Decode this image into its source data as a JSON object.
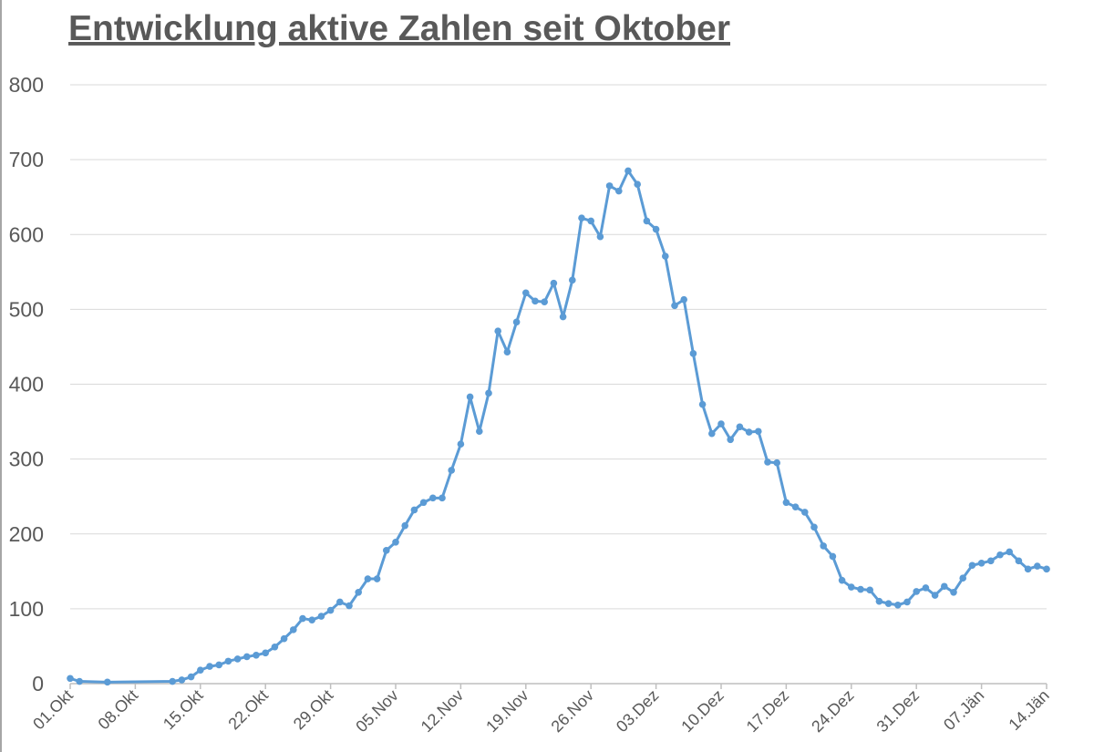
{
  "chart_data": {
    "type": "line",
    "title": "Entwicklung aktive Zahlen seit Oktober",
    "x": [
      0,
      1,
      4,
      11,
      12,
      13,
      14,
      15,
      16,
      17,
      18,
      19,
      20,
      21,
      22,
      23,
      24,
      25,
      26,
      27,
      28,
      29,
      30,
      31,
      32,
      33,
      34,
      35,
      36,
      37,
      38,
      39,
      40,
      41,
      42,
      43,
      44,
      45,
      46,
      47,
      48,
      49,
      50,
      51,
      52,
      53,
      54,
      55,
      56,
      57,
      58,
      59,
      60,
      61,
      62,
      63,
      64,
      65,
      66,
      67,
      68,
      69,
      70,
      71,
      72,
      73,
      74,
      75,
      76,
      77,
      78,
      79,
      80,
      81,
      82,
      83,
      84,
      85,
      86,
      87,
      88,
      89,
      90,
      91,
      92,
      93,
      94,
      95,
      96,
      97,
      98,
      99,
      100,
      101,
      102,
      103,
      104,
      105
    ],
    "series": [
      {
        "color": "#5b9bd5",
        "values": [
          7,
          3,
          2,
          3,
          5,
          9,
          18,
          23,
          25,
          30,
          33,
          36,
          38,
          41,
          49,
          60,
          72,
          87,
          85,
          90,
          98,
          109,
          104,
          122,
          140,
          140,
          178,
          189,
          211,
          232,
          242,
          248,
          248,
          285,
          320,
          383,
          337,
          388,
          471,
          443,
          483,
          522,
          511,
          510,
          535,
          490,
          539,
          622,
          618,
          597,
          665,
          658,
          685,
          667,
          618,
          607,
          571,
          505,
          513,
          441,
          373,
          334,
          347,
          326,
          343,
          336,
          337,
          296,
          295,
          242,
          236,
          229,
          209,
          184,
          170,
          138,
          129,
          126,
          125,
          110,
          107,
          105,
          109,
          123,
          128,
          118,
          130,
          122,
          141,
          158,
          161,
          164,
          172,
          176,
          164,
          153,
          157,
          153
        ]
      }
    ],
    "xlim": [
      0,
      105
    ],
    "xticks": [
      {
        "value": 0,
        "label": "01.Okt"
      },
      {
        "value": 7,
        "label": "08.Okt"
      },
      {
        "value": 14,
        "label": "15.Okt"
      },
      {
        "value": 21,
        "label": "22.Okt"
      },
      {
        "value": 28,
        "label": "29.Okt"
      },
      {
        "value": 35,
        "label": "05.Nov"
      },
      {
        "value": 42,
        "label": "12.Nov"
      },
      {
        "value": 49,
        "label": "19.Nov"
      },
      {
        "value": 56,
        "label": "26.Nov"
      },
      {
        "value": 63,
        "label": "03.Dez"
      },
      {
        "value": 70,
        "label": "10.Dez"
      },
      {
        "value": 77,
        "label": "17.Dez"
      },
      {
        "value": 84,
        "label": "24.Dez"
      },
      {
        "value": 91,
        "label": "31.Dez"
      },
      {
        "value": 98,
        "label": "07.Jän"
      },
      {
        "value": 105,
        "label": "14.Jän"
      }
    ],
    "ylim": [
      0,
      800
    ],
    "yticks": [
      0,
      100,
      200,
      300,
      400,
      500,
      600,
      700,
      800
    ],
    "grid": true
  }
}
